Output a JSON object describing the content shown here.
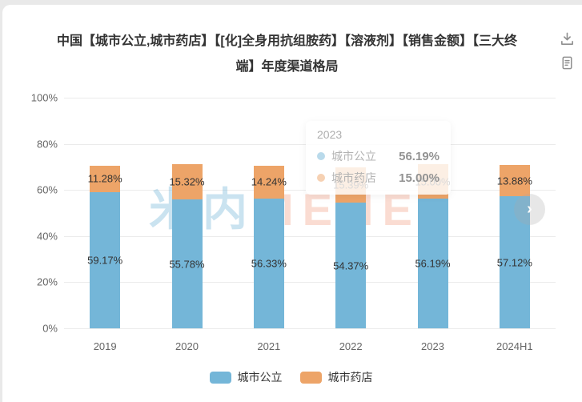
{
  "header": {
    "title_lines": [
      "中国【城市公立,城市药店】【[化]全身用抗组胺药】【溶液剂】【销售金额】【三大终",
      "端】年度渠道格局"
    ]
  },
  "chart_data": {
    "type": "bar",
    "stacked": true,
    "title": "中国【城市公立,城市药店】【[化]全身用抗组胺药】【溶液剂】【销售金额】【三大终端】年度渠道格局",
    "categories": [
      "2019",
      "2020",
      "2021",
      "2022",
      "2023",
      "2024H1"
    ],
    "series": [
      {
        "name": "城市公立",
        "color": "#74b6d8",
        "values": [
          59.17,
          55.78,
          56.33,
          54.37,
          56.19,
          57.12
        ]
      },
      {
        "name": "城市药店",
        "color": "#eda468",
        "values": [
          11.28,
          15.32,
          14.24,
          15.39,
          15.0,
          13.88
        ]
      }
    ],
    "y_ticks": [
      "0%",
      "20%",
      "40%",
      "60%",
      "80%",
      "100%"
    ],
    "ylim": [
      0,
      100
    ],
    "grid": true,
    "legend_position": "bottom",
    "label_format": "percent_2dp"
  },
  "tooltip": {
    "title": "2023",
    "rows": [
      {
        "label": "城市公立",
        "value": "56.19%",
        "color": "#74b6d8"
      },
      {
        "label": "城市药店",
        "value": "15.00%",
        "color": "#eda468"
      }
    ]
  },
  "watermark": {
    "cn": "米内",
    "en": "MENET"
  },
  "nav": {
    "next_glyph": "›"
  },
  "colors": {
    "series_blue": "#74b6d8",
    "series_orange": "#eda468",
    "grid": "#ebebeb",
    "axis_text": "#666666",
    "label_text": "#333333"
  }
}
